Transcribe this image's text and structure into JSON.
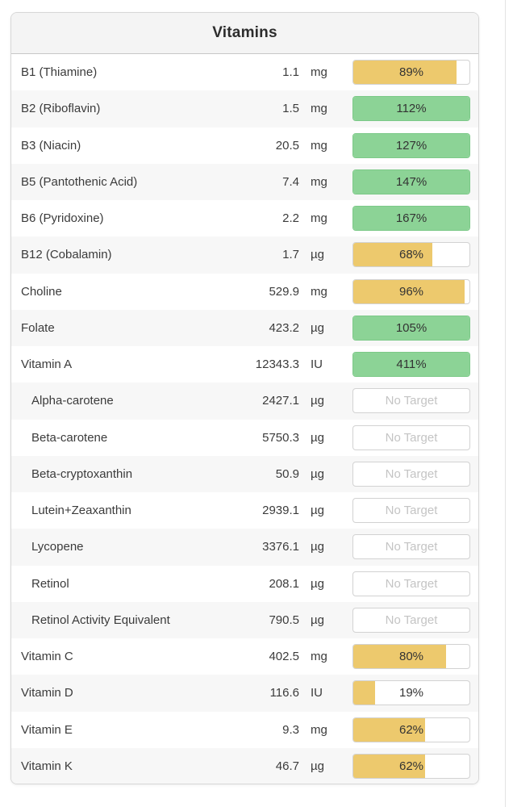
{
  "panel": {
    "title": "Vitamins"
  },
  "colors": {
    "yellow": "#edc96d",
    "green": "#8cd396",
    "green_border": "#7cc988",
    "no_target_text": "#c4c4c4"
  },
  "rows": [
    {
      "label": "B1 (Thiamine)",
      "amount": "1.1",
      "unit": "mg",
      "percent": "89%",
      "pct": 89,
      "status": "yellow",
      "indent": false
    },
    {
      "label": "B2 (Riboflavin)",
      "amount": "1.5",
      "unit": "mg",
      "percent": "112%",
      "pct": 112,
      "status": "green",
      "indent": false
    },
    {
      "label": "B3 (Niacin)",
      "amount": "20.5",
      "unit": "mg",
      "percent": "127%",
      "pct": 127,
      "status": "green",
      "indent": false
    },
    {
      "label": "B5 (Pantothenic Acid)",
      "amount": "7.4",
      "unit": "mg",
      "percent": "147%",
      "pct": 147,
      "status": "green",
      "indent": false
    },
    {
      "label": "B6 (Pyridoxine)",
      "amount": "2.2",
      "unit": "mg",
      "percent": "167%",
      "pct": 167,
      "status": "green",
      "indent": false
    },
    {
      "label": "B12 (Cobalamin)",
      "amount": "1.7",
      "unit": "µg",
      "percent": "68%",
      "pct": 68,
      "status": "yellow",
      "indent": false
    },
    {
      "label": "Choline",
      "amount": "529.9",
      "unit": "mg",
      "percent": "96%",
      "pct": 96,
      "status": "yellow",
      "indent": false
    },
    {
      "label": "Folate",
      "amount": "423.2",
      "unit": "µg",
      "percent": "105%",
      "pct": 105,
      "status": "green",
      "indent": false
    },
    {
      "label": "Vitamin A",
      "amount": "12343.3",
      "unit": "IU",
      "percent": "411%",
      "pct": 411,
      "status": "green",
      "indent": false
    },
    {
      "label": "Alpha-carotene",
      "amount": "2427.1",
      "unit": "µg",
      "percent": "No Target",
      "pct": 0,
      "status": "none",
      "indent": true
    },
    {
      "label": "Beta-carotene",
      "amount": "5750.3",
      "unit": "µg",
      "percent": "No Target",
      "pct": 0,
      "status": "none",
      "indent": true
    },
    {
      "label": "Beta-cryptoxanthin",
      "amount": "50.9",
      "unit": "µg",
      "percent": "No Target",
      "pct": 0,
      "status": "none",
      "indent": true
    },
    {
      "label": "Lutein+Zeaxanthin",
      "amount": "2939.1",
      "unit": "µg",
      "percent": "No Target",
      "pct": 0,
      "status": "none",
      "indent": true
    },
    {
      "label": "Lycopene",
      "amount": "3376.1",
      "unit": "µg",
      "percent": "No Target",
      "pct": 0,
      "status": "none",
      "indent": true
    },
    {
      "label": "Retinol",
      "amount": "208.1",
      "unit": "µg",
      "percent": "No Target",
      "pct": 0,
      "status": "none",
      "indent": true
    },
    {
      "label": "Retinol Activity Equivalent",
      "amount": "790.5",
      "unit": "µg",
      "percent": "No Target",
      "pct": 0,
      "status": "none",
      "indent": true
    },
    {
      "label": "Vitamin C",
      "amount": "402.5",
      "unit": "mg",
      "percent": "80%",
      "pct": 80,
      "status": "yellow",
      "indent": false
    },
    {
      "label": "Vitamin D",
      "amount": "116.6",
      "unit": "IU",
      "percent": "19%",
      "pct": 19,
      "status": "yellow",
      "indent": false
    },
    {
      "label": "Vitamin E",
      "amount": "9.3",
      "unit": "mg",
      "percent": "62%",
      "pct": 62,
      "status": "yellow",
      "indent": false
    },
    {
      "label": "Vitamin K",
      "amount": "46.7",
      "unit": "µg",
      "percent": "62%",
      "pct": 62,
      "status": "yellow",
      "indent": false
    }
  ]
}
